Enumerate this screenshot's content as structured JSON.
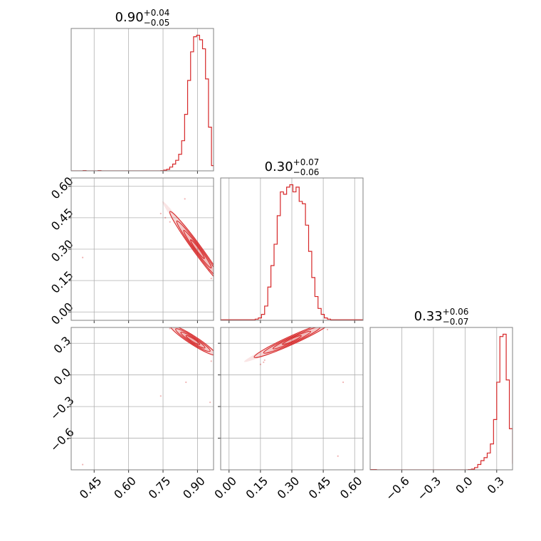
{
  "chart_data": {
    "type": "corner",
    "color": "#d62728",
    "grid": true,
    "parameters": [
      {
        "range": [
          0.35,
          0.97
        ],
        "ticks": [
          0.45,
          0.6,
          0.75,
          0.9
        ],
        "tick_labels": [
          "0.45",
          "0.60",
          "0.75",
          "0.90"
        ],
        "title": {
          "median": "0.90",
          "plus": "+0.04",
          "minus": "−0.05"
        },
        "histogram": {
          "edges": [
            0.35,
            0.363,
            0.376,
            0.389,
            0.402,
            0.415,
            0.428,
            0.441,
            0.454,
            0.467,
            0.48,
            0.493,
            0.506,
            0.519,
            0.532,
            0.545,
            0.558,
            0.571,
            0.584,
            0.597,
            0.61,
            0.623,
            0.636,
            0.649,
            0.662,
            0.675,
            0.688,
            0.701,
            0.714,
            0.727,
            0.74,
            0.753,
            0.766,
            0.779,
            0.792,
            0.805,
            0.818,
            0.831,
            0.844,
            0.857,
            0.87,
            0.883,
            0.896,
            0.909,
            0.922,
            0.935,
            0.948,
            0.961,
            0.97
          ],
          "counts": [
            0,
            0,
            0,
            0,
            0.4,
            0,
            0,
            0,
            0,
            0.4,
            0,
            0,
            0,
            0,
            0,
            0,
            0,
            0,
            0,
            0,
            0,
            0,
            0,
            0,
            0,
            0,
            0,
            0,
            0,
            0,
            0.3,
            1,
            2,
            5,
            9,
            14,
            22,
            40,
            75,
            120,
            158,
            178,
            180,
            174,
            162,
            122,
            58,
            7
          ]
        }
      },
      {
        "range": [
          -0.04,
          0.64
        ],
        "ticks": [
          0.0,
          0.15,
          0.3,
          0.45,
          0.6
        ],
        "tick_labels": [
          "0.00",
          "0.15",
          "0.30",
          "0.45",
          "0.60"
        ],
        "title": {
          "median": "0.30",
          "plus": "+0.07",
          "minus": "−0.06"
        },
        "histogram": {
          "edges": [
            -0.04,
            -0.025,
            -0.01,
            0.005,
            0.02,
            0.035,
            0.05,
            0.065,
            0.08,
            0.095,
            0.11,
            0.125,
            0.14,
            0.155,
            0.17,
            0.185,
            0.2,
            0.215,
            0.23,
            0.245,
            0.26,
            0.275,
            0.29,
            0.305,
            0.32,
            0.335,
            0.35,
            0.365,
            0.38,
            0.395,
            0.41,
            0.425,
            0.44,
            0.455,
            0.47,
            0.485,
            0.5,
            0.515,
            0.53,
            0.545,
            0.56,
            0.575,
            0.59,
            0.605,
            0.62,
            0.64
          ],
          "counts": [
            0.5,
            0.5,
            0.5,
            0.5,
            0.5,
            0.5,
            0.5,
            0.5,
            0.5,
            0.5,
            0.5,
            1,
            2,
            5,
            12,
            28,
            46,
            64,
            88,
            108,
            106,
            112,
            114,
            108,
            112,
            100,
            98,
            80,
            58,
            36,
            20,
            10,
            5,
            2,
            1,
            0.5,
            0.5,
            0.5,
            0.5,
            0.5,
            0.5,
            0.5,
            0.5,
            0.5,
            0.5
          ]
        }
      },
      {
        "range": [
          -0.9,
          0.45
        ],
        "ticks": [
          -0.6,
          -0.3,
          0.0,
          0.3
        ],
        "tick_labels": [
          "−0.6",
          "−0.3",
          "0.0",
          "0.3"
        ],
        "title": {
          "median": "0.33",
          "plus": "+0.06",
          "minus": "−0.07"
        },
        "histogram": {
          "edges": [
            -0.9,
            -0.87,
            -0.84,
            -0.81,
            -0.78,
            -0.75,
            -0.72,
            -0.69,
            -0.66,
            -0.63,
            -0.6,
            -0.57,
            -0.54,
            -0.51,
            -0.48,
            -0.45,
            -0.42,
            -0.39,
            -0.36,
            -0.33,
            -0.3,
            -0.27,
            -0.24,
            -0.21,
            -0.18,
            -0.15,
            -0.12,
            -0.09,
            -0.06,
            -0.03,
            0.0,
            0.03,
            0.06,
            0.09,
            0.12,
            0.15,
            0.18,
            0.21,
            0.24,
            0.27,
            0.3,
            0.33,
            0.36,
            0.39,
            0.42,
            0.45
          ],
          "counts": [
            0.4,
            0.4,
            0,
            0,
            0,
            0,
            0,
            0,
            0,
            0,
            0,
            0,
            0,
            0,
            0,
            0,
            0,
            0,
            0,
            0,
            0,
            0,
            0,
            0,
            0,
            0,
            0,
            0,
            0,
            0,
            0,
            0.4,
            1,
            3,
            7,
            12,
            16,
            22,
            34,
            66,
            115,
            175,
            178,
            118,
            54,
            8
          ]
        }
      }
    ],
    "pairs": [
      {
        "x_param": 0,
        "y_param": 1,
        "line": {
          "x0": 0.9,
          "y0": 0.3,
          "slope": -1.5
        },
        "contours": [
          {
            "x_halfwidth": 0.02,
            "y_halfwidth": 0.012
          },
          {
            "x_halfwidth": 0.04,
            "y_halfwidth": 0.018
          },
          {
            "x_halfwidth": 0.06,
            "y_halfwidth": 0.024
          },
          {
            "x_halfwidth": 0.08,
            "y_halfwidth": 0.028
          }
        ],
        "scatter": [
          [
            0.74,
            0.47
          ],
          [
            0.76,
            0.45
          ],
          [
            0.78,
            0.43
          ],
          [
            0.845,
            0.54
          ],
          [
            0.4,
            0.26
          ],
          [
            0.96,
            0.16
          ],
          [
            0.95,
            0.2
          ]
        ]
      },
      {
        "x_param": 0,
        "y_param": 2,
        "line": {
          "x0": 0.88,
          "y0": 0.33,
          "slope": -1.4
        },
        "contours": [
          {
            "x_halfwidth": 0.02,
            "y_halfwidth": 0.018
          },
          {
            "x_halfwidth": 0.035,
            "y_halfwidth": 0.026
          },
          {
            "x_halfwidth": 0.05,
            "y_halfwidth": 0.034
          },
          {
            "x_halfwidth": 0.065,
            "y_halfwidth": 0.04
          }
        ],
        "scatter": [
          [
            0.85,
            -0.07
          ],
          [
            0.74,
            -0.2
          ],
          [
            0.955,
            -0.26
          ],
          [
            0.96,
            0.13
          ],
          [
            0.4,
            -0.85
          ],
          [
            0.78,
            0.44
          ]
        ]
      },
      {
        "x_param": 1,
        "y_param": 2,
        "line": {
          "x0": 0.3,
          "y0": 0.33,
          "slope": 0.9
        },
        "contours": [
          {
            "x_halfwidth": 0.03,
            "y_halfwidth": 0.018
          },
          {
            "x_halfwidth": 0.06,
            "y_halfwidth": 0.026
          },
          {
            "x_halfwidth": 0.09,
            "y_halfwidth": 0.034
          },
          {
            "x_halfwidth": 0.12,
            "y_halfwidth": 0.04
          }
        ],
        "scatter": [
          [
            0.15,
            0.1
          ],
          [
            0.165,
            0.12
          ],
          [
            0.17,
            0.14
          ],
          [
            0.545,
            -0.07
          ],
          [
            0.52,
            -0.77
          ],
          [
            0.47,
            0.43
          ]
        ]
      }
    ]
  }
}
